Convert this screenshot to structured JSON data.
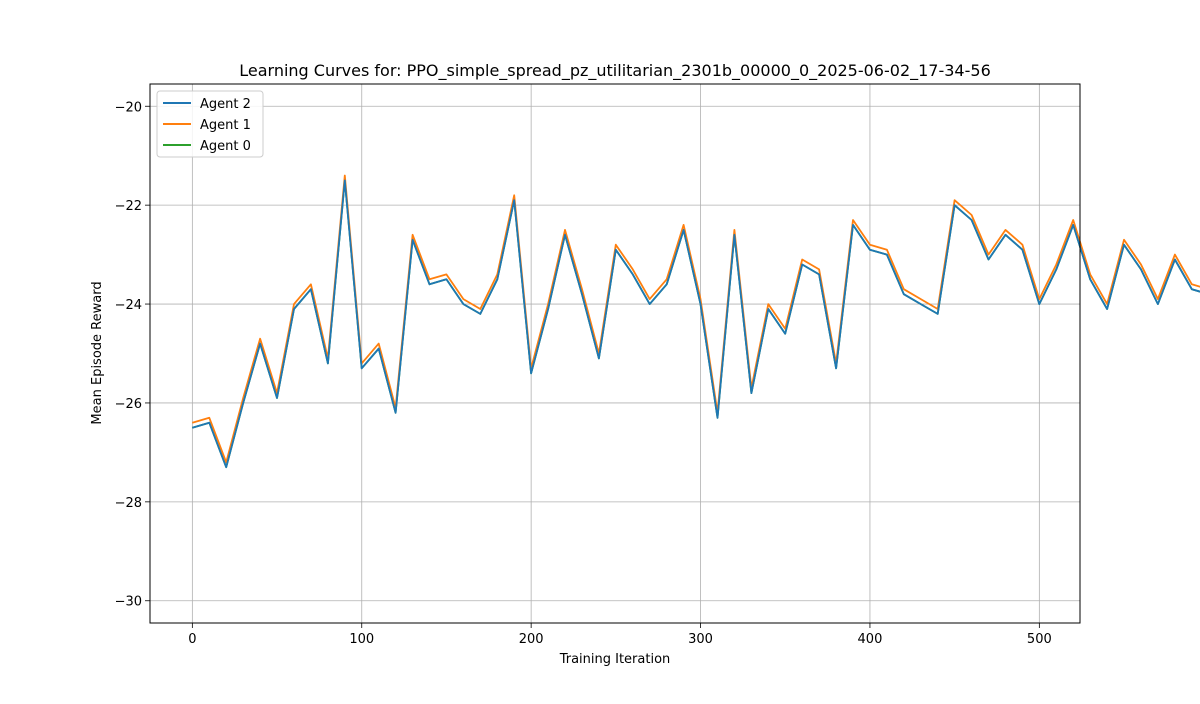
{
  "chart_data": {
    "type": "line",
    "title": "Learning Curves for: PPO_simple_spread_pz_utilitarian_2301b_00000_0_2025-06-02_17-34-56",
    "xlabel": "Training Iteration",
    "ylabel": "Mean Episode Reward",
    "xlim": [
      -25,
      524
    ],
    "ylim": [
      -30.45,
      -19.55
    ],
    "xticks": [
      0,
      100,
      200,
      300,
      400,
      500
    ],
    "yticks": [
      -30,
      -28,
      -26,
      -24,
      -22,
      -20
    ],
    "xtick_labels": [
      "0",
      "100",
      "200",
      "300",
      "400",
      "500"
    ],
    "ytick_labels": [
      "−30",
      "−28",
      "−26",
      "−24",
      "−22",
      "−20"
    ],
    "grid": true,
    "legend_position": "top-left",
    "notes": "Values approximated from the plot; the three agent curves are nearly identical, with Agent 1 and Agent 2 deviating slightly from Agent 0.",
    "x_start": 0,
    "x_step": 10,
    "series": [
      {
        "name": "Agent 2",
        "color": "#1f77b4",
        "values": [
          -26.5,
          -26.4,
          -27.3,
          -26.0,
          -24.8,
          -25.9,
          -24.1,
          -23.7,
          -25.2,
          -21.5,
          -25.3,
          -24.9,
          -26.2,
          -22.7,
          -23.6,
          -23.5,
          -24.0,
          -24.2,
          -23.5,
          -21.9,
          -25.4,
          -24.1,
          -22.6,
          -23.8,
          -25.1,
          -22.9,
          -23.4,
          -24.0,
          -23.6,
          -22.5,
          -24.0,
          -26.3,
          -22.6,
          -25.8,
          -24.1,
          -24.6,
          -23.2,
          -23.4,
          -25.3,
          -22.4,
          -22.9,
          -23.0,
          -23.8,
          -24.0,
          -24.2,
          -22.0,
          -22.3,
          -23.1,
          -22.6,
          -22.9,
          -24.0,
          -23.3,
          -22.4,
          -23.5,
          -24.1,
          -22.8,
          -23.3,
          -24.0,
          -23.1,
          -23.7,
          -23.8,
          -24.0,
          -23.9,
          -23.8,
          -22.7,
          -23.0,
          -23.1,
          -23.2,
          -22.9,
          -23.5,
          -24.0,
          -23.1,
          -23.2,
          -23.6,
          -24.4,
          -23.2,
          -22.7,
          -23.0,
          -23.6,
          -23.3,
          -26.8,
          -22.5,
          -23.3,
          -23.7,
          -23.5,
          -24.1,
          -23.4,
          -23.6,
          -23.0,
          -22.9,
          -24.3,
          -23.1,
          -22.8,
          -23.0,
          -23.3,
          -23.9,
          -22.8,
          -23.2,
          -23.3,
          -23.5,
          -24.5
        ]
      },
      {
        "name": "Agent 1",
        "color": "#ff7f0e",
        "values": [
          -26.4,
          -26.3,
          -27.2,
          -25.9,
          -24.7,
          -25.8,
          -24.0,
          -23.6,
          -25.1,
          -21.4,
          -25.2,
          -24.8,
          -26.1,
          -22.6,
          -23.5,
          -23.4,
          -23.9,
          -24.1,
          -23.4,
          -21.8,
          -25.3,
          -24.0,
          -22.5,
          -23.7,
          -25.0,
          -22.8,
          -23.3,
          -23.9,
          -23.5,
          -22.4,
          -23.9,
          -26.2,
          -22.5,
          -25.7,
          -24.0,
          -24.5,
          -23.1,
          -23.3,
          -25.2,
          -22.3,
          -22.8,
          -22.9,
          -23.7,
          -23.9,
          -24.1,
          -21.9,
          -22.2,
          -23.0,
          -22.5,
          -22.8,
          -23.9,
          -23.2,
          -22.3,
          -23.4,
          -24.0,
          -22.7,
          -23.2,
          -23.9,
          -23.0,
          -23.6,
          -23.7,
          -23.9,
          -23.8,
          -23.7,
          -22.6,
          -22.9,
          -23.0,
          -23.1,
          -22.8,
          -23.4,
          -23.9,
          -23.0,
          -23.1,
          -23.5,
          -24.3,
          -23.1,
          -22.6,
          -22.9,
          -23.5,
          -23.2,
          -26.7,
          -22.4,
          -23.2,
          -23.6,
          -23.4,
          -24.0,
          -23.3,
          -23.5,
          -22.9,
          -22.8,
          -24.2,
          -23.0,
          -22.7,
          -22.9,
          -23.2,
          -23.8,
          -22.7,
          -23.1,
          -23.2,
          -23.4,
          -24.4
        ]
      },
      {
        "name": "Agent 0",
        "color": "#2ca02c",
        "values": [
          -26.5,
          -26.4,
          -27.3,
          -26.0,
          -24.8,
          -25.9,
          -24.1,
          -23.7,
          -25.2,
          -21.5,
          -25.3,
          -24.9,
          -26.2,
          -22.7,
          -23.6,
          -23.5,
          -24.0,
          -24.2,
          -23.5,
          -21.9,
          -25.4,
          -24.1,
          -22.6,
          -23.8,
          -25.1,
          -22.9,
          -23.4,
          -24.0,
          -23.6,
          -22.5,
          -24.0,
          -26.3,
          -22.6,
          -25.8,
          -24.1,
          -24.6,
          -23.2,
          -23.4,
          -25.3,
          -22.4,
          -22.9,
          -23.0,
          -23.8,
          -24.0,
          -24.2,
          -22.0,
          -22.3,
          -23.1,
          -22.6,
          -22.9,
          -24.0,
          -23.3,
          -22.4,
          -23.5,
          -24.1,
          -22.8,
          -23.3,
          -24.0,
          -23.1,
          -23.7,
          -23.8,
          -24.0,
          -23.9,
          -23.8,
          -22.7,
          -23.0,
          -23.1,
          -23.2,
          -22.9,
          -23.5,
          -24.0,
          -23.1,
          -23.2,
          -23.6,
          -24.4,
          -23.2,
          -22.7,
          -23.0,
          -23.6,
          -23.3,
          -26.8,
          -22.5,
          -23.3,
          -23.7,
          -23.5,
          -24.1,
          -23.4,
          -23.6,
          -23.0,
          -22.9,
          -24.3,
          -23.1,
          -22.8,
          -23.0,
          -23.3,
          -23.9,
          -22.8,
          -23.2,
          -23.3,
          -23.5,
          -24.5
        ]
      }
    ]
  }
}
